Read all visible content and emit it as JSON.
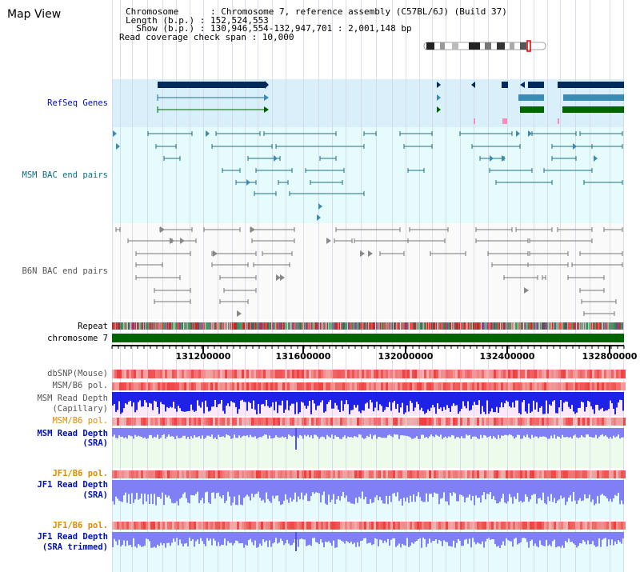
{
  "header": {
    "title": "Map View",
    "info_lines": [
      "Chromosome      : Chromosome 7, reference assembly (C57BL/6J) (Build 37)",
      "Length (b.p.) : 152,524,553",
      "  Show (b.p.) : 130,946,554-132,947,701 : 2,001,148 bp",
      "Read coverage check span : 10,000"
    ]
  },
  "tracks": {
    "refseq": "RefSeq Genes",
    "msm_bac": "MSM BAC end pairs",
    "b6n_bac": "B6N BAC end pairs",
    "repeat": "Repeat",
    "chromosome": "chromosome 7",
    "dbsnp": "dbSNP(Mouse)",
    "msm_b6_pol_1": "MSM/B6 pol.",
    "msm_depth_cap_1": "MSM Read Depth",
    "msm_depth_cap_2": "(Capillary)",
    "msm_b6_pol_2": "MSM/B6 pol.",
    "msm_depth_sra_1": "MSM Read Depth",
    "msm_depth_sra_2": "(SRA)",
    "jf1_b6_pol_1": "JF1/B6 pol.",
    "jf1_depth_sra_1": "JF1 Read Depth",
    "jf1_depth_sra_2": "(SRA)",
    "jf1_b6_pol_2": "JF1/B6 pol.",
    "jf1_depth_trim_1": "JF1 Read Depth",
    "jf1_depth_trim_2": "(SRA trimmed)"
  },
  "axis": {
    "ticks": [
      "131200000",
      "131600000",
      "132000000",
      "132400000",
      "132800000"
    ]
  },
  "colors": {
    "refseq_bg": "#d9f0fa",
    "bac_bg": "#e6fbfb",
    "gene_dark": "#002a5c",
    "gene_mid": "#3a8bb5",
    "gene_green": "#006400",
    "msm_line": "#1a7089",
    "b6n_line": "#777777",
    "depth_blue": "#1e22e6",
    "depth_light": "#8080f4",
    "pol_red": "#f0353a",
    "chrom_green": "#006400"
  }
}
